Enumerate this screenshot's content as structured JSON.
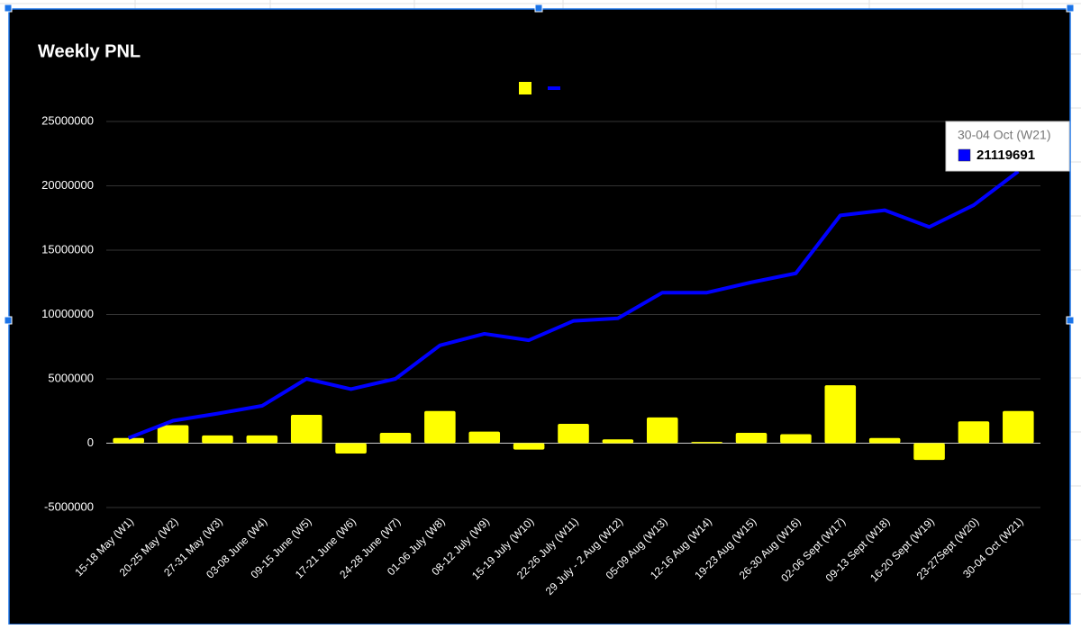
{
  "chart_data": {
    "type": "combo",
    "title": "Weekly PNL",
    "categories": [
      "15-18 May (W1)",
      "20-25 May (W2)",
      "27-31 May (W3)",
      "03-08 June (W4)",
      "09-15 June (W5)",
      "17-21 June (W6)",
      "24-28 June (W7)",
      "01-06 July (W8)",
      "08-12 July (W9)",
      "15-19 July (W10)",
      "22-26 July (W11)",
      "29 July - 2 Aug (W12)",
      "05-09 Aug (W13)",
      "12-16 Aug (W14)",
      "19-23 Aug (W15)",
      "26-30 Aug (W16)",
      "02-06 Sept (W17)",
      "09-13 Sept (W18)",
      "16-20 Sept (W19)",
      "23-27Sept (W20)",
      "30-04 Oct (W21)"
    ],
    "series": [
      {
        "type": "bar",
        "color": "#ffff00",
        "values": [
          400000,
          1400000,
          600000,
          600000,
          2200000,
          -800000,
          800000,
          2500000,
          900000,
          -500000,
          1500000,
          300000,
          2000000,
          100000,
          800000,
          700000,
          4500000,
          400000,
          -1300000,
          1700000,
          2500000
        ]
      },
      {
        "type": "line",
        "color": "#0000ff",
        "values": [
          400000,
          1750000,
          2300000,
          2900000,
          5000000,
          4200000,
          5000000,
          7600000,
          8500000,
          8000000,
          9500000,
          9700000,
          11700000,
          11700000,
          12500000,
          13200000,
          17700000,
          18100000,
          16800000,
          18500000,
          21119691
        ]
      }
    ],
    "ylim": [
      -5000000,
      25000000
    ],
    "yticks": [
      -5000000,
      0,
      5000000,
      10000000,
      15000000,
      20000000,
      25000000
    ],
    "grid": true
  }
}
